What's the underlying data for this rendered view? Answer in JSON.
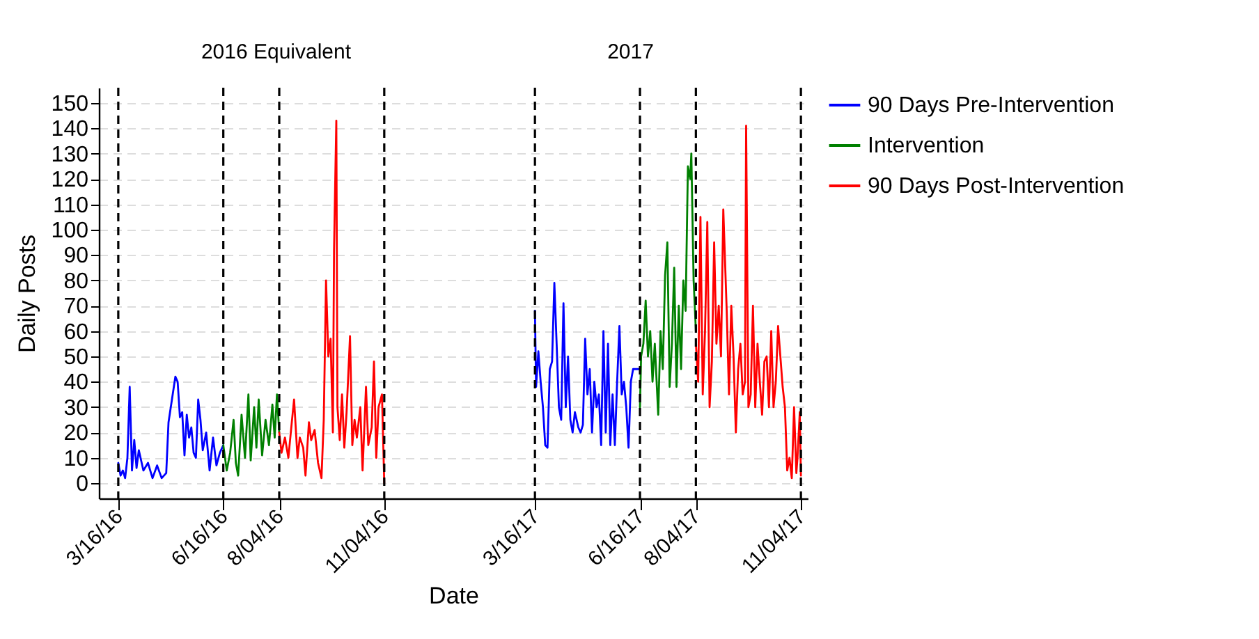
{
  "chart_data": {
    "type": "line",
    "xlabel": "Date",
    "ylabel": "Daily Posts",
    "annotations": [
      "2016 Equivalent",
      "2017"
    ],
    "xlim": [
      "2016-02-28",
      "2017-11-10"
    ],
    "ylim": [
      -6,
      156
    ],
    "xticks": [
      {
        "value": "2016-03-16",
        "label": "3/16/16"
      },
      {
        "value": "2016-06-16",
        "label": "6/16/16"
      },
      {
        "value": "2016-08-04",
        "label": "8/04/16"
      },
      {
        "value": "2016-11-04",
        "label": "11/04/16"
      },
      {
        "value": "2017-03-16",
        "label": "3/16/17"
      },
      {
        "value": "2017-06-16",
        "label": "6/16/17"
      },
      {
        "value": "2017-08-04",
        "label": "8/04/17"
      },
      {
        "value": "2017-11-04",
        "label": "11/04/17"
      }
    ],
    "yticks": [
      0,
      10,
      20,
      30,
      40,
      50,
      60,
      70,
      80,
      90,
      100,
      110,
      120,
      130,
      140,
      150
    ],
    "grid": "y",
    "legend": "right",
    "line_style": "solid",
    "marker": "none",
    "ref_lines": [
      {
        "axis": "x",
        "value": "2016-03-16",
        "color": "#000000",
        "line_style": "dashed"
      },
      {
        "axis": "x",
        "value": "2016-06-16",
        "color": "#000000",
        "line_style": "dashed"
      },
      {
        "axis": "x",
        "value": "2016-08-04",
        "color": "#000000",
        "line_style": "dashed"
      },
      {
        "axis": "x",
        "value": "2016-11-04",
        "color": "#000000",
        "line_style": "dashed"
      },
      {
        "axis": "x",
        "value": "2017-03-16",
        "color": "#000000",
        "line_style": "dashed"
      },
      {
        "axis": "x",
        "value": "2017-06-16",
        "color": "#000000",
        "line_style": "dashed"
      },
      {
        "axis": "x",
        "value": "2017-08-04",
        "color": "#000000",
        "line_style": "dashed"
      },
      {
        "axis": "x",
        "value": "2017-11-04",
        "color": "#000000",
        "line_style": "dashed"
      }
    ],
    "series": [
      {
        "name": "90 Days Pre-Intervention",
        "color": "#0000ff",
        "x": [
          "2016-03-16",
          "2016-03-18",
          "2016-03-20",
          "2016-03-22",
          "2016-03-24",
          "2016-03-26",
          "2016-03-28",
          "2016-03-30",
          "2016-04-01",
          "2016-04-03",
          "2016-04-07",
          "2016-04-11",
          "2016-04-15",
          "2016-04-19",
          "2016-04-23",
          "2016-04-27",
          "2016-04-29",
          "2016-05-02",
          "2016-05-05",
          "2016-05-07",
          "2016-05-09",
          "2016-05-11",
          "2016-05-13",
          "2016-05-15",
          "2016-05-17",
          "2016-05-19",
          "2016-05-21",
          "2016-05-23",
          "2016-05-25",
          "2016-05-27",
          "2016-05-29",
          "2016-06-01",
          "2016-06-04",
          "2016-06-07",
          "2016-06-10",
          "2016-06-13",
          "2016-06-16",
          "2017-01-01",
          "2017-03-16",
          "2017-03-17",
          "2017-03-19",
          "2017-03-21",
          "2017-03-23",
          "2017-03-25",
          "2017-03-27",
          "2017-03-29",
          "2017-03-31",
          "2017-04-02",
          "2017-04-04",
          "2017-04-06",
          "2017-04-08",
          "2017-04-10",
          "2017-04-12",
          "2017-04-14",
          "2017-04-16",
          "2017-04-18",
          "2017-04-20",
          "2017-04-23",
          "2017-04-25",
          "2017-04-27",
          "2017-04-29",
          "2017-05-01",
          "2017-05-03",
          "2017-05-05",
          "2017-05-07",
          "2017-05-09",
          "2017-05-11",
          "2017-05-13",
          "2017-05-15",
          "2017-05-17",
          "2017-05-19",
          "2017-05-21",
          "2017-05-23",
          "2017-05-25",
          "2017-05-27",
          "2017-05-29",
          "2017-05-31",
          "2017-06-02",
          "2017-06-04",
          "2017-06-06",
          "2017-06-08",
          "2017-06-10",
          "2017-06-12",
          "2017-06-16"
        ],
        "values": [
          8,
          3,
          5,
          2,
          10,
          38,
          5,
          17,
          6,
          13,
          5,
          8,
          2,
          7,
          2,
          4,
          24,
          33,
          42,
          40,
          26,
          28,
          11,
          27,
          18,
          22,
          12,
          10,
          33,
          25,
          13,
          20,
          5,
          18,
          7,
          12,
          15,
          null,
          68,
          38,
          52,
          40,
          30,
          15,
          14,
          45,
          48,
          79,
          55,
          30,
          25,
          71,
          30,
          50,
          25,
          20,
          28,
          22,
          20,
          23,
          57,
          35,
          45,
          20,
          40,
          30,
          35,
          15,
          60,
          20,
          55,
          15,
          35,
          15,
          40,
          62,
          35,
          40,
          30,
          14,
          40,
          45,
          45,
          45
        ]
      },
      {
        "name": "Intervention",
        "color": "#008000",
        "x": [
          "2016-06-16",
          "2016-06-19",
          "2016-06-22",
          "2016-06-25",
          "2016-06-27",
          "2016-06-29",
          "2016-07-02",
          "2016-07-05",
          "2016-07-08",
          "2016-07-10",
          "2016-07-13",
          "2016-07-15",
          "2016-07-17",
          "2016-07-20",
          "2016-07-23",
          "2016-07-26",
          "2016-07-29",
          "2016-07-31",
          "2016-08-02",
          "2016-08-04",
          "2017-01-01",
          "2017-06-16",
          "2017-06-17",
          "2017-06-19",
          "2017-06-21",
          "2017-06-23",
          "2017-06-25",
          "2017-06-27",
          "2017-06-29",
          "2017-07-02",
          "2017-07-04",
          "2017-07-06",
          "2017-07-08",
          "2017-07-10",
          "2017-07-12",
          "2017-07-14",
          "2017-07-16",
          "2017-07-18",
          "2017-07-20",
          "2017-07-22",
          "2017-07-24",
          "2017-07-26",
          "2017-07-28",
          "2017-07-30",
          "2017-07-31",
          "2017-08-02",
          "2017-08-04"
        ],
        "values": [
          15,
          5,
          12,
          25,
          8,
          3,
          27,
          10,
          35,
          9,
          30,
          14,
          33,
          11,
          25,
          15,
          31,
          18,
          35,
          20,
          null,
          30,
          50,
          55,
          72,
          50,
          60,
          40,
          55,
          27,
          60,
          45,
          82,
          95,
          38,
          55,
          85,
          38,
          70,
          45,
          80,
          68,
          125,
          120,
          130,
          80,
          60
        ]
      },
      {
        "name": "90 Days Post-Intervention",
        "color": "#ff0000",
        "x": [
          "2016-08-04",
          "2016-08-06",
          "2016-08-09",
          "2016-08-12",
          "2016-08-15",
          "2016-08-17",
          "2016-08-20",
          "2016-08-22",
          "2016-08-25",
          "2016-08-27",
          "2016-08-30",
          "2016-09-01",
          "2016-09-04",
          "2016-09-07",
          "2016-09-10",
          "2016-09-12",
          "2016-09-14",
          "2016-09-16",
          "2016-09-18",
          "2016-09-20",
          "2016-09-21",
          "2016-09-23",
          "2016-09-24",
          "2016-09-26",
          "2016-09-28",
          "2016-09-30",
          "2016-10-02",
          "2016-10-05",
          "2016-10-07",
          "2016-10-09",
          "2016-10-11",
          "2016-10-14",
          "2016-10-16",
          "2016-10-19",
          "2016-10-21",
          "2016-10-24",
          "2016-10-26",
          "2016-10-28",
          "2016-10-30",
          "2016-11-02",
          "2016-11-04",
          "2017-01-01",
          "2017-08-04",
          "2017-08-06",
          "2017-08-08",
          "2017-08-10",
          "2017-08-12",
          "2017-08-14",
          "2017-08-16",
          "2017-08-18",
          "2017-08-20",
          "2017-08-22",
          "2017-08-24",
          "2017-08-26",
          "2017-08-28",
          "2017-08-31",
          "2017-09-02",
          "2017-09-04",
          "2017-09-06",
          "2017-09-08",
          "2017-09-10",
          "2017-09-12",
          "2017-09-14",
          "2017-09-16",
          "2017-09-17",
          "2017-09-19",
          "2017-09-21",
          "2017-09-23",
          "2017-09-25",
          "2017-09-27",
          "2017-09-29",
          "2017-10-01",
          "2017-10-03",
          "2017-10-05",
          "2017-10-07",
          "2017-10-09",
          "2017-10-11",
          "2017-10-13",
          "2017-10-15",
          "2017-10-17",
          "2017-10-19",
          "2017-10-21",
          "2017-10-23",
          "2017-10-25",
          "2017-10-27",
          "2017-10-29",
          "2017-10-31",
          "2017-11-01",
          "2017-11-03",
          "2017-11-04"
        ],
        "values": [
          20,
          12,
          18,
          10,
          24,
          33,
          10,
          18,
          14,
          3,
          24,
          17,
          21,
          8,
          2,
          25,
          80,
          50,
          57,
          20,
          92,
          143,
          30,
          17,
          35,
          14,
          28,
          58,
          15,
          25,
          18,
          30,
          5,
          38,
          15,
          22,
          48,
          10,
          30,
          35,
          0,
          null,
          55,
          40,
          105,
          35,
          60,
          103,
          30,
          48,
          95,
          55,
          70,
          50,
          108,
          68,
          35,
          70,
          50,
          20,
          45,
          55,
          35,
          40,
          141,
          30,
          35,
          70,
          30,
          55,
          40,
          27,
          48,
          50,
          30,
          60,
          30,
          40,
          62,
          50,
          38,
          30,
          5,
          10,
          2,
          30,
          4,
          10,
          28,
          3
        ]
      }
    ]
  }
}
